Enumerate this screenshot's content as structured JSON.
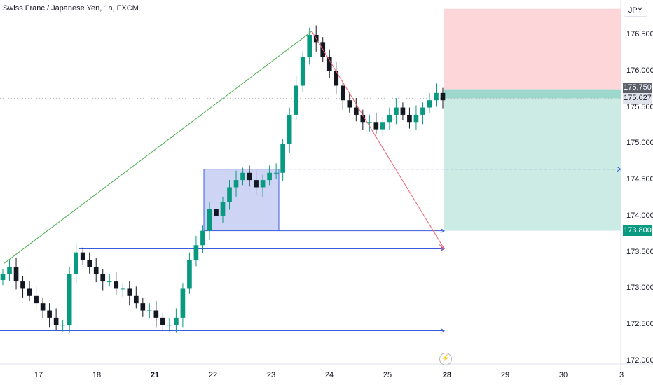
{
  "title": "Swiss Franc / Japanese Yen, 1h, FXCM",
  "currency": "JPY",
  "price_ticks": [
    "176.500",
    "176.000",
    "175.500",
    "175.000",
    "174.500",
    "174.000",
    "173.500",
    "173.000",
    "172.500",
    "172.000"
  ],
  "date_ticks": [
    {
      "label": "17",
      "bold": false
    },
    {
      "label": "18",
      "bold": false
    },
    {
      "label": "21",
      "bold": true
    },
    {
      "label": "22",
      "bold": false
    },
    {
      "label": "23",
      "bold": false
    },
    {
      "label": "24",
      "bold": false
    },
    {
      "label": "25",
      "bold": false
    },
    {
      "label": "28",
      "bold": true
    },
    {
      "label": "29",
      "bold": false
    },
    {
      "label": "30",
      "bold": false
    },
    {
      "label": "3",
      "bold": false
    }
  ],
  "tags": {
    "stop": "175.750",
    "last": "175.627",
    "target": "173.800"
  },
  "colors": {
    "up": "#089981",
    "down": "#131722",
    "risk_zone": "#fcd6d9",
    "reward_zone": "#cdebe5",
    "box_fill": "#c5cdf2",
    "box_stroke": "#3b5bdb",
    "trend_up": "#4caf50",
    "trend_down": "#f06273"
  },
  "chart_data": {
    "type": "candlestick",
    "y_range": [
      172.0,
      176.9
    ],
    "x_range_days": [
      "17",
      "18",
      "21",
      "22",
      "23",
      "24",
      "25",
      "28",
      "29",
      "30",
      "3"
    ],
    "candles_close_approx": [
      173.2,
      173.3,
      173.1,
      173.0,
      172.9,
      172.8,
      172.7,
      172.6,
      172.5,
      172.5,
      173.2,
      173.5,
      173.4,
      173.3,
      173.2,
      173.1,
      173.1,
      173.0,
      173.0,
      172.9,
      172.8,
      172.7,
      172.7,
      172.6,
      172.5,
      172.5,
      172.6,
      173.0,
      173.4,
      173.6,
      173.8,
      174.1,
      174.0,
      174.2,
      174.4,
      174.5,
      174.6,
      174.5,
      174.4,
      174.5,
      174.6,
      174.6,
      175.0,
      175.4,
      175.8,
      176.2,
      176.5,
      176.4,
      176.2,
      176.0,
      175.8,
      175.6,
      175.5,
      175.4,
      175.3,
      175.3,
      175.2,
      175.3,
      175.4,
      175.5,
      175.4,
      175.3,
      175.4,
      175.5,
      175.6,
      175.7,
      175.6
    ],
    "levels": [
      {
        "name": "support",
        "value": 172.42
      },
      {
        "name": "range-low",
        "value": 173.55
      },
      {
        "name": "target",
        "value": 173.8
      },
      {
        "name": "box-top",
        "value": 174.65
      }
    ],
    "box": {
      "from": "22",
      "to": "23",
      "low": 173.8,
      "high": 174.65
    },
    "position": {
      "entry": 175.627,
      "stop": 175.75,
      "target": 173.8,
      "stop_zone_high": 176.86
    },
    "trendlines": [
      {
        "from_price": 173.35,
        "to_price": 176.55
      },
      {
        "from_price": 176.55,
        "to_price": 173.55
      }
    ]
  }
}
